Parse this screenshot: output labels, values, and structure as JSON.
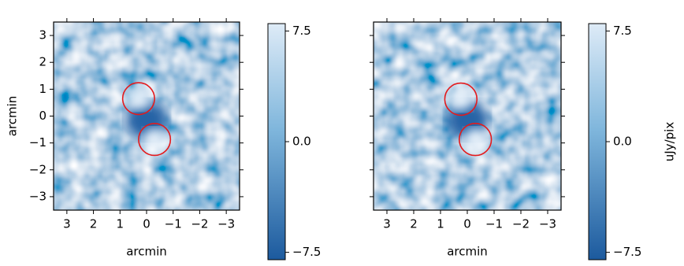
{
  "chart_data": [
    {
      "type": "image",
      "xlabel": "arcmin",
      "ylabel": "arcmin",
      "xlim": [
        3.5,
        -3.5
      ],
      "ylim": [
        -3.5,
        3.5
      ],
      "xticks": [
        3,
        2,
        1,
        0,
        {
          "value": -1,
          "label": "−1"
        },
        {
          "value": -2,
          "label": "−2"
        },
        {
          "value": -3,
          "label": "−3"
        }
      ],
      "yticks": [
        3,
        2,
        1,
        0,
        {
          "value": -1,
          "label": "−1"
        },
        {
          "value": -2,
          "label": "−2"
        },
        {
          "value": -3,
          "label": "−3"
        }
      ],
      "show_yticklabels": true,
      "cmap": "Blues",
      "clim": [
        -8,
        8
      ],
      "cbar_ticks": [
        7.5,
        {
          "value": 0,
          "label": "0.0"
        },
        {
          "value": -7.5,
          "label": "−7.5"
        }
      ],
      "circles": [
        {
          "x": 0.3,
          "y": 0.65,
          "r": 0.6,
          "color": "#e41a1c"
        },
        {
          "x": -0.3,
          "y": -0.87,
          "r": 0.6,
          "color": "#e41a1c"
        }
      ]
    },
    {
      "type": "image",
      "xlabel": "arcmin",
      "xlim": [
        3.5,
        -3.5
      ],
      "ylim": [
        -3.5,
        3.5
      ],
      "xticks": [
        3,
        2,
        1,
        0,
        {
          "value": -1,
          "label": "−1"
        },
        {
          "value": -2,
          "label": "−2"
        },
        {
          "value": -3,
          "label": "−3"
        }
      ],
      "yticks": [
        3,
        2,
        1,
        0,
        {
          "value": -1,
          "label": "−1"
        },
        {
          "value": -2,
          "label": "−2"
        },
        {
          "value": -3,
          "label": "−3"
        }
      ],
      "show_yticklabels": false,
      "cmap": "Blues",
      "clim": [
        -8,
        8
      ],
      "cbar_ticks": [
        7.5,
        {
          "value": 0,
          "label": "0.0"
        },
        {
          "value": -7.5,
          "label": "−7.5"
        }
      ],
      "cbar_label": "uJy/pix",
      "circles": [
        {
          "x": 0.24,
          "y": 0.63,
          "r": 0.6,
          "color": "#e41a1c"
        },
        {
          "x": -0.3,
          "y": -0.87,
          "r": 0.6,
          "color": "#e41a1c"
        }
      ]
    }
  ]
}
